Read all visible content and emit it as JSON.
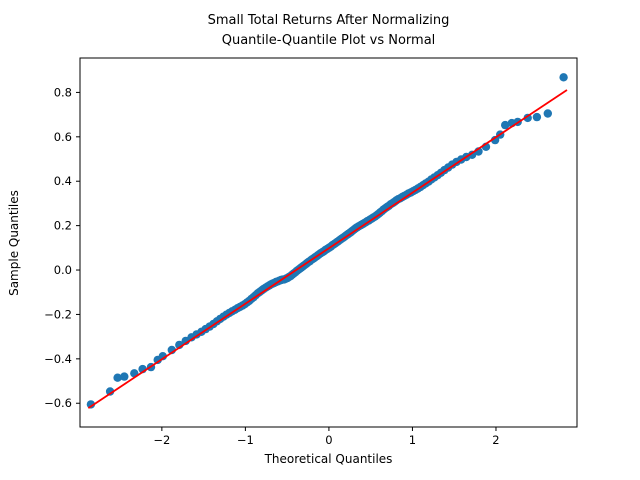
{
  "figure": {
    "title_line1": "Small Total Returns After Normalizing",
    "title_line2": "Quantile-Quantile Plot vs Normal",
    "xlabel": "Theoretical Quantiles",
    "ylabel": "Sample Quantiles"
  },
  "chart_data": {
    "type": "scatter",
    "title": "Small Total Returns After Normalizing\nQuantile-Quantile Plot vs Normal",
    "xlabel": "Theoretical Quantiles",
    "ylabel": "Sample Quantiles",
    "grid": false,
    "legend": null,
    "xlim": [
      -2.98,
      2.97
    ],
    "ylim": [
      -0.707,
      0.955
    ],
    "x_ticks": {
      "values": [
        -2,
        -1,
        0,
        1,
        2
      ],
      "labels": [
        "−2",
        "−1",
        "0",
        "1",
        "2"
      ]
    },
    "y_ticks": {
      "values": [
        -0.6,
        -0.4,
        -0.2,
        0.0,
        0.2,
        0.4,
        0.6,
        0.8
      ],
      "labels": [
        "−0.6",
        "−0.4",
        "−0.2",
        "0.0",
        "0.2",
        "0.4",
        "0.6",
        "0.8"
      ]
    },
    "marker_color": "#1f77b4",
    "line_color": "#ff0000",
    "frame_color": "#000000",
    "fit_line": {
      "x1": -2.88,
      "y1": -0.622,
      "x2": 2.85,
      "y2": 0.811
    },
    "series": [
      {
        "name": "sample-vs-theoretical-quantiles",
        "points": [
          [
            -2.85,
            -0.605
          ],
          [
            -2.62,
            -0.547
          ],
          [
            -2.53,
            -0.485
          ],
          [
            -2.45,
            -0.48
          ],
          [
            -2.33,
            -0.465
          ],
          [
            -2.23,
            -0.446
          ],
          [
            -2.13,
            -0.437
          ],
          [
            -2.05,
            -0.405
          ],
          [
            -1.989,
            -0.388
          ],
          [
            -1.881,
            -0.36
          ],
          [
            -1.791,
            -0.337
          ],
          [
            -1.714,
            -0.319
          ],
          [
            -1.645,
            -0.303
          ],
          [
            -1.584,
            -0.29
          ],
          [
            -1.527,
            -0.278
          ],
          [
            -1.476,
            -0.266
          ],
          [
            -1.428,
            -0.255
          ],
          [
            -1.383,
            -0.243
          ],
          [
            -1.341,
            -0.231
          ],
          [
            -1.301,
            -0.22
          ],
          [
            -1.263,
            -0.21
          ],
          [
            -1.227,
            -0.201
          ],
          [
            -1.192,
            -0.193
          ],
          [
            -1.159,
            -0.186
          ],
          [
            -1.126,
            -0.179
          ],
          [
            -1.095,
            -0.172
          ],
          [
            -1.065,
            -0.166
          ],
          [
            -1.036,
            -0.16
          ],
          [
            -1.008,
            -0.154
          ],
          [
            -0.98,
            -0.146
          ],
          [
            -0.954,
            -0.139
          ],
          [
            -0.928,
            -0.13
          ],
          [
            -0.902,
            -0.122
          ],
          [
            -0.878,
            -0.114
          ],
          [
            -0.853,
            -0.105
          ],
          [
            -0.83,
            -0.099
          ],
          [
            -0.806,
            -0.092
          ],
          [
            -0.784,
            -0.086
          ],
          [
            -0.761,
            -0.08
          ],
          [
            -0.739,
            -0.075
          ],
          [
            -0.717,
            -0.07
          ],
          [
            -0.696,
            -0.065
          ],
          [
            -0.674,
            -0.061
          ],
          [
            -0.654,
            -0.058
          ],
          [
            -0.633,
            -0.054
          ],
          [
            -0.613,
            -0.051
          ],
          [
            -0.593,
            -0.048
          ],
          [
            -0.573,
            -0.045
          ],
          [
            -0.553,
            -0.043
          ],
          [
            -0.534,
            -0.042
          ],
          [
            -0.515,
            -0.039
          ],
          [
            -0.496,
            -0.036
          ],
          [
            -0.477,
            -0.031
          ],
          [
            -0.458,
            -0.027
          ],
          [
            -0.44,
            -0.021
          ],
          [
            -0.421,
            -0.015
          ],
          [
            -0.403,
            -0.01
          ],
          [
            -0.385,
            -0.004
          ],
          [
            -0.367,
            0.001
          ],
          [
            -0.349,
            0.006
          ],
          [
            -0.332,
            0.011
          ],
          [
            -0.314,
            0.016
          ],
          [
            -0.297,
            0.021
          ],
          [
            -0.279,
            0.026
          ],
          [
            -0.262,
            0.031
          ],
          [
            -0.245,
            0.036
          ],
          [
            -0.228,
            0.04
          ],
          [
            -0.21,
            0.046
          ],
          [
            -0.193,
            0.05
          ],
          [
            -0.176,
            0.054
          ],
          [
            -0.159,
            0.059
          ],
          [
            -0.143,
            0.063
          ],
          [
            -0.126,
            0.068
          ],
          [
            -0.109,
            0.073
          ],
          [
            -0.092,
            0.077
          ],
          [
            -0.075,
            0.081
          ],
          [
            -0.059,
            0.085
          ],
          [
            -0.042,
            0.09
          ],
          [
            -0.025,
            0.094
          ],
          [
            -0.008,
            0.098
          ],
          [
            0.008,
            0.102
          ],
          [
            0.025,
            0.106
          ],
          [
            0.042,
            0.112
          ],
          [
            0.059,
            0.116
          ],
          [
            0.075,
            0.12
          ],
          [
            0.092,
            0.125
          ],
          [
            0.109,
            0.129
          ],
          [
            0.126,
            0.134
          ],
          [
            0.143,
            0.139
          ],
          [
            0.159,
            0.143
          ],
          [
            0.176,
            0.147
          ],
          [
            0.193,
            0.152
          ],
          [
            0.21,
            0.157
          ],
          [
            0.228,
            0.162
          ],
          [
            0.245,
            0.166
          ],
          [
            0.262,
            0.171
          ],
          [
            0.279,
            0.176
          ],
          [
            0.297,
            0.181
          ],
          [
            0.314,
            0.186
          ],
          [
            0.332,
            0.191
          ],
          [
            0.349,
            0.195
          ],
          [
            0.367,
            0.199
          ],
          [
            0.385,
            0.203
          ],
          [
            0.403,
            0.207
          ],
          [
            0.421,
            0.211
          ],
          [
            0.44,
            0.215
          ],
          [
            0.458,
            0.22
          ],
          [
            0.477,
            0.223
          ],
          [
            0.496,
            0.228
          ],
          [
            0.515,
            0.232
          ],
          [
            0.534,
            0.237
          ],
          [
            0.553,
            0.241
          ],
          [
            0.573,
            0.247
          ],
          [
            0.593,
            0.253
          ],
          [
            0.613,
            0.259
          ],
          [
            0.633,
            0.265
          ],
          [
            0.654,
            0.272
          ],
          [
            0.674,
            0.278
          ],
          [
            0.696,
            0.284
          ],
          [
            0.717,
            0.289
          ],
          [
            0.739,
            0.296
          ],
          [
            0.761,
            0.301
          ],
          [
            0.784,
            0.307
          ],
          [
            0.806,
            0.313
          ],
          [
            0.83,
            0.319
          ],
          [
            0.853,
            0.323
          ],
          [
            0.878,
            0.329
          ],
          [
            0.902,
            0.334
          ],
          [
            0.928,
            0.339
          ],
          [
            0.954,
            0.345
          ],
          [
            0.98,
            0.349
          ],
          [
            1.008,
            0.355
          ],
          [
            1.036,
            0.361
          ],
          [
            1.065,
            0.367
          ],
          [
            1.095,
            0.374
          ],
          [
            1.126,
            0.382
          ],
          [
            1.159,
            0.39
          ],
          [
            1.192,
            0.398
          ],
          [
            1.227,
            0.408
          ],
          [
            1.263,
            0.417
          ],
          [
            1.301,
            0.427
          ],
          [
            1.341,
            0.438
          ],
          [
            1.383,
            0.45
          ],
          [
            1.428,
            0.462
          ],
          [
            1.476,
            0.475
          ],
          [
            1.527,
            0.487
          ],
          [
            1.584,
            0.498
          ],
          [
            1.645,
            0.509
          ],
          [
            1.714,
            0.519
          ],
          [
            1.791,
            0.534
          ],
          [
            1.881,
            0.555
          ],
          [
            1.989,
            0.585
          ],
          [
            2.05,
            0.61
          ],
          [
            2.11,
            0.653
          ],
          [
            2.19,
            0.662
          ],
          [
            2.26,
            0.667
          ],
          [
            2.38,
            0.685
          ],
          [
            2.49,
            0.689
          ],
          [
            2.62,
            0.705
          ],
          [
            2.81,
            0.868
          ]
        ]
      }
    ]
  }
}
